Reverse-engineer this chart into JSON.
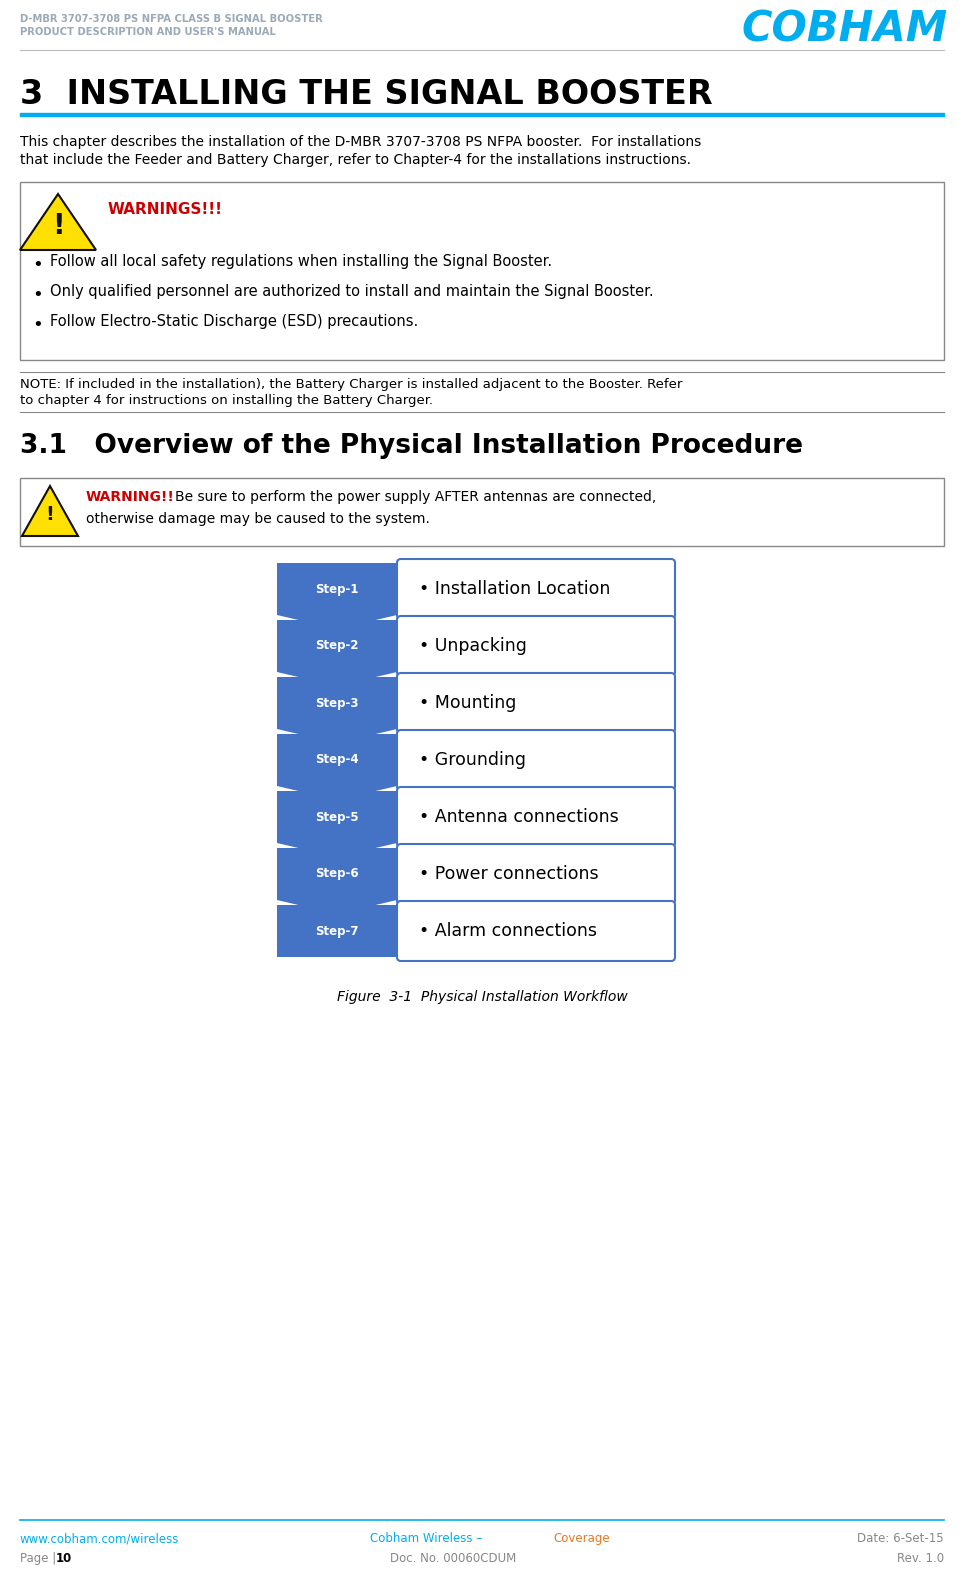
{
  "header_line1": "D-MBR 3707-3708 PS NFPA CLASS B SIGNAL BOOSTER",
  "header_line2": "PRODUCT DESCRIPTION AND USER'S MANUAL",
  "cobham_text": "COBHAM",
  "cobham_color": "#00AEEF",
  "header_text_color": "#9BAAB8",
  "title": "3  INSTALLING THE SIGNAL BOOSTER",
  "title_underline_color": "#00AEEF",
  "body_line1": "This chapter describes the installation of the D-MBR 3707-3708 PS NFPA booster.  For installations",
  "body_line2": "that include the Feeder and Battery Charger, refer to Chapter-4 for the installations instructions.",
  "warnings_title": "WARNINGS!!!",
  "warnings_color": "#CC0000",
  "warning_bullets": [
    "Follow all local safety regulations when installing the Signal Booster.",
    "Only qualified personnel are authorized to install and maintain the Signal Booster.",
    "Follow Electro-Static Discharge (ESD) precautions."
  ],
  "note_line1": "NOTE: If included in the installation), the Battery Charger is installed adjacent to the Booster. Refer",
  "note_line2": "to chapter 4 for instructions on installing the Battery Charger.",
  "section_title": "3.1   Overview of the Physical Installation Procedure",
  "warning2_title": "WARNING!!",
  "warning2_color": "#CC0000",
  "warning2_line1": " Be sure to perform the power supply AFTER antennas are connected,",
  "warning2_line2": "otherwise damage may be caused to the system.",
  "steps": [
    "Step-1",
    "Step-2",
    "Step-3",
    "Step-4",
    "Step-5",
    "Step-6",
    "Step-7"
  ],
  "step_labels": [
    "Installation Location",
    "Unpacking",
    "Mounting",
    "Grounding",
    "Antenna connections",
    "Power connections",
    "Alarm connections"
  ],
  "step_chevron_color": "#4472C4",
  "step_box_border": "#4472C4",
  "step_box_fill": "#FFFFFF",
  "step_text_color": "#FFFFFF",
  "figure_caption": "Figure  3-1  Physical Installation Workflow",
  "footer_left1": "www.cobham.com/wireless",
  "footer_left1_color": "#00AEEF",
  "footer_center1": "Cobham Wireless – ",
  "footer_center1b": "Coverage",
  "footer_center1_color": "#00AEEF",
  "footer_center1b_color": "#E87722",
  "footer_right1": "Date: 6-Set-15",
  "footer_right1_color": "#888888",
  "footer_left2": "Page | ",
  "footer_left2b": "10",
  "footer_left2_color": "#888888",
  "footer_left2b_color": "#000000",
  "footer_center2": "Doc. No. 00060CDUM",
  "footer_center2_color": "#888888",
  "footer_right2": "Rev. 1.0",
  "footer_right2_color": "#888888",
  "footer_line_color": "#00AEEF",
  "bg_color": "#FFFFFF"
}
